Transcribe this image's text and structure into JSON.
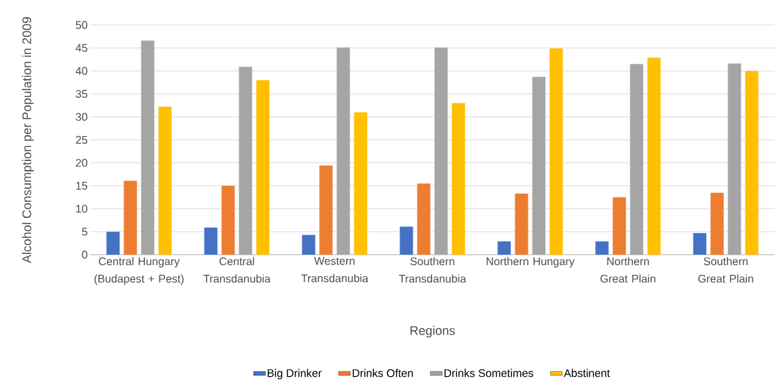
{
  "chart_data": {
    "type": "bar",
    "xlabel": "Regions",
    "ylabel": "Alcohol Consumption per Population in 2009",
    "categories": [
      "Central Hungary (Budapest + Pest)",
      "Central Transdanubia",
      "Western Transdanubia",
      "Southern Transdanubia",
      "Northern Hungary",
      "Northern Great Plain",
      "Southern Great Plain"
    ],
    "series": [
      {
        "name": "Big Drinker",
        "color": "#4472c4",
        "values": [
          5.0,
          5.9,
          4.3,
          6.1,
          2.9,
          2.9,
          4.7
        ]
      },
      {
        "name": "Drinks Often",
        "color": "#ed7d31",
        "values": [
          16.1,
          15.0,
          19.4,
          15.5,
          13.3,
          12.5,
          13.5
        ]
      },
      {
        "name": "Drinks Sometimes",
        "color": "#a5a5a5",
        "values": [
          46.6,
          40.9,
          45.1,
          45.1,
          38.7,
          41.5,
          41.6
        ]
      },
      {
        "name": "Abstinent",
        "color": "#ffc000",
        "values": [
          32.2,
          38.0,
          31.0,
          33.0,
          44.9,
          42.9,
          40.0
        ]
      }
    ],
    "ylim": [
      0,
      50
    ],
    "yticks": [
      0,
      5,
      10,
      15,
      20,
      25,
      30,
      35,
      40,
      45,
      50
    ],
    "grid": "y",
    "legend": "bottom"
  }
}
